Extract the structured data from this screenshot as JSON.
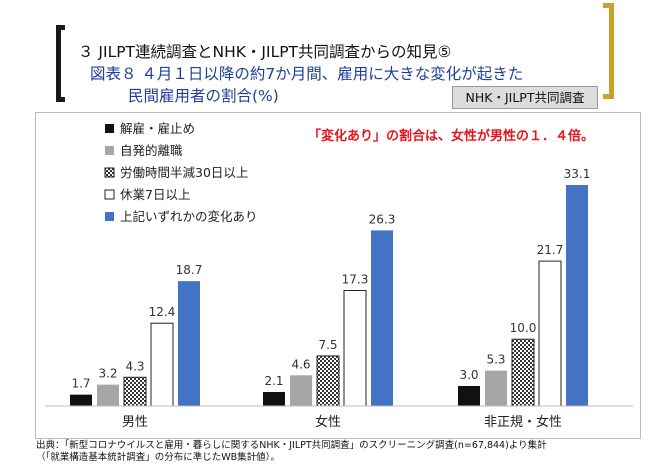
{
  "header": {
    "line1": "３ JILPT連続調査とNHK・JILPT共同調査からの知見⑤",
    "line2": "図表８ ４月１日以降の約7か月間、雇用に大きな変化が起きた",
    "line3": "民間雇用者の割合(%)",
    "badge": "NHK・JILPT共同調査"
  },
  "annotation": "「変化あり」の割合は、女性が男性の１．４倍。",
  "source": {
    "line1": "出典：「新型コロナウイルスと雇用・暮らしに関するNHK・JILPT共同調査」のスクリーニング調査(n=67,844)より集計",
    "line2": "（「就業構造基本統計調査」の分布に準じたWB集計値）。"
  },
  "colors": {
    "black": "#111111",
    "gray": "#a6a6a6",
    "hatch": "#ffffff",
    "white": "#ffffff",
    "blue": "#4472c4",
    "annotation": "#e8141c",
    "bracket_right": "#c9a227"
  },
  "chart_data": {
    "type": "bar",
    "categories": [
      "男性",
      "女性",
      "非正規・女性"
    ],
    "series": [
      {
        "name": "解雇・雇止め",
        "style": "black",
        "values": [
          1.7,
          2.1,
          3.0
        ]
      },
      {
        "name": "自発的離職",
        "style": "gray",
        "values": [
          3.2,
          4.6,
          5.3
        ]
      },
      {
        "name": "労働時間半減30日以上",
        "style": "hatch",
        "values": [
          4.3,
          7.5,
          10.0
        ]
      },
      {
        "name": "休業7日以上",
        "style": "white",
        "values": [
          12.4,
          17.3,
          21.7
        ]
      },
      {
        "name": "上記いずれかの変化あり",
        "style": "blue",
        "values": [
          18.7,
          26.3,
          33.1
        ]
      }
    ],
    "data_labels": [
      [
        "1.7",
        "3.2",
        "4.3",
        "12.4",
        "18.7"
      ],
      [
        "2.1",
        "4.6",
        "7.5",
        "17.3",
        "26.3"
      ],
      [
        "3.0",
        "5.3",
        "10.0",
        "21.7",
        "33.1"
      ]
    ],
    "ylim": [
      0,
      35
    ],
    "legend_position": "top-left",
    "grid": false
  }
}
